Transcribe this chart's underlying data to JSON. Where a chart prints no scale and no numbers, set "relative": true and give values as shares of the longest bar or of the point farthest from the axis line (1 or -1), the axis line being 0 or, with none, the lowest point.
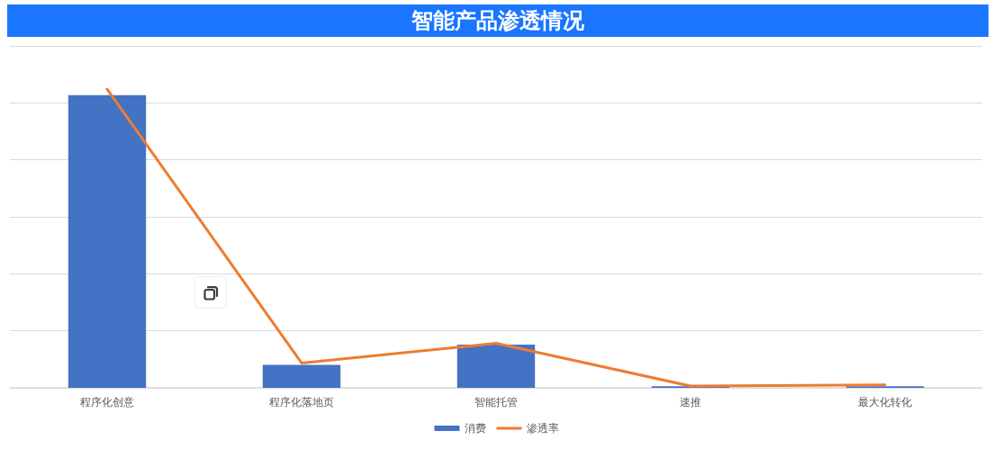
{
  "chart_data": {
    "type": "bar",
    "title": "智能产品渗透情况",
    "categories": [
      "程序化创意",
      "程序化落地页",
      "智能托管",
      "速推",
      "最大化转化"
    ],
    "series": [
      {
        "name": "消费",
        "color": "#4472c4",
        "values": [
          0.98,
          0.077,
          0.145,
          0.005,
          0.005
        ]
      },
      {
        "name": "渗透率",
        "type": "line",
        "color": "#ed7d31",
        "values": [
          1,
          0.083,
          0.149,
          0.006,
          0.01
        ]
      }
    ],
    "relative": true,
    "grid": "y",
    "legend": "bottom",
    "marker": "none",
    "line_style": "solid"
  }
}
